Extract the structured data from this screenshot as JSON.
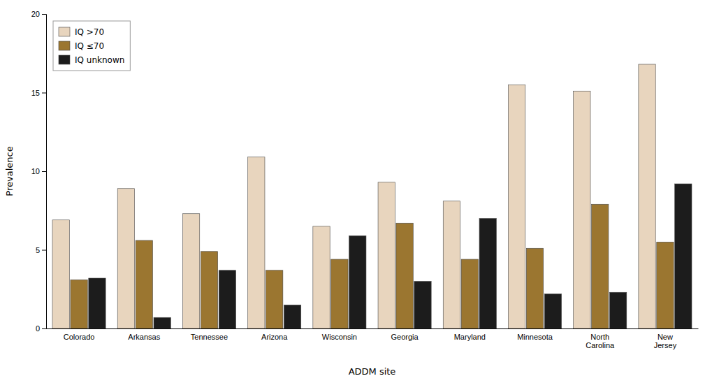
{
  "chart_data": {
    "type": "bar",
    "xlabel": "ADDM site",
    "ylabel": "Prevalence",
    "categories": [
      "Colorado",
      "Arkansas",
      "Tennessee",
      "Arizona",
      "Wisconsin",
      "Georgia",
      "Maryland",
      "Minnesota",
      "North\nCarolina",
      "New\nJersey"
    ],
    "series": [
      {
        "name": "IQ >70",
        "color": "#E8D5BE",
        "values": [
          6.9,
          8.9,
          7.3,
          10.9,
          6.5,
          9.3,
          8.1,
          15.5,
          15.1,
          16.8
        ]
      },
      {
        "name": "IQ ≤70",
        "color": "#9B7630",
        "values": [
          3.1,
          5.6,
          4.9,
          3.7,
          4.4,
          6.7,
          4.4,
          5.1,
          7.9,
          5.5
        ]
      },
      {
        "name": "IQ unknown",
        "color": "#1C1C1C",
        "values": [
          3.2,
          0.7,
          3.7,
          1.5,
          5.9,
          3.0,
          7.0,
          2.2,
          2.3,
          9.2
        ]
      }
    ],
    "ylim": [
      0,
      20
    ],
    "yticks": [
      0,
      5,
      10,
      15,
      20
    ],
    "grid": false,
    "legend": "upper left"
  }
}
